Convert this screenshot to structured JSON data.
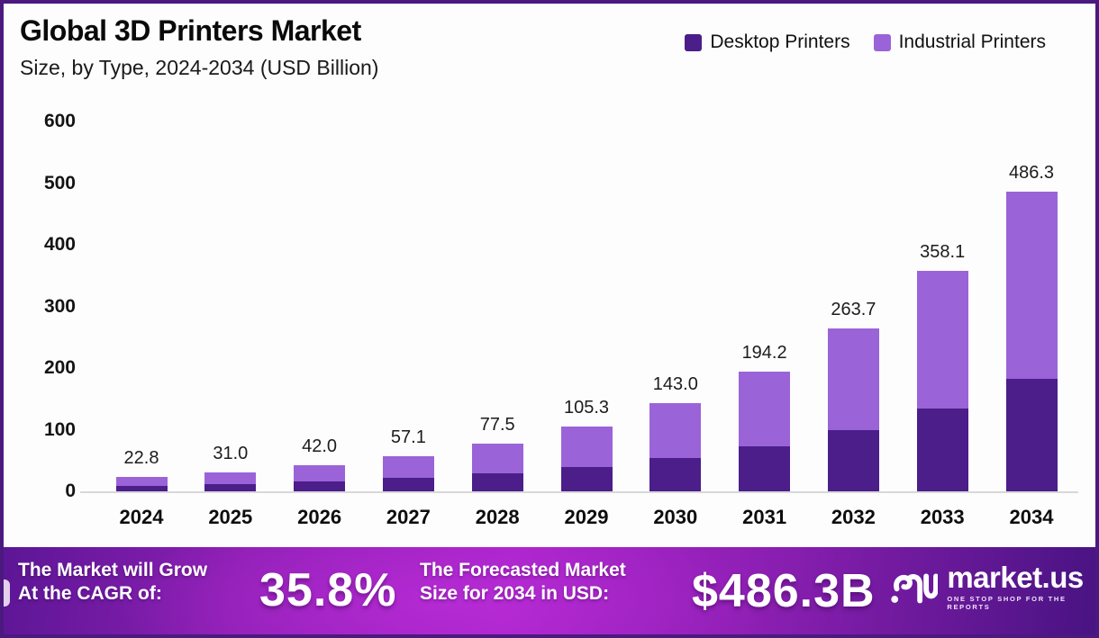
{
  "header": {
    "title": "Global 3D Printers Market",
    "subtitle": "Size, by Type, 2024-2034 (USD Billion)"
  },
  "legend": [
    {
      "label": "Desktop Printers",
      "color": "#4B1E8A"
    },
    {
      "label": "Industrial Printers",
      "color": "#9B63D8"
    }
  ],
  "colors": {
    "bar_desktop": "#4B1E8A",
    "bar_industrial": "#9B63D8",
    "page_border": "#4A1A7F",
    "axis_line": "#D8D8D8",
    "banner_gradient": [
      "#5C1695",
      "#A824C9",
      "#471381"
    ]
  },
  "chart_data": {
    "type": "bar",
    "stacked": true,
    "title": "Global 3D Printers Market Size, by Type, 2024-2034 (USD Billion)",
    "categories": [
      "2024",
      "2025",
      "2026",
      "2027",
      "2028",
      "2029",
      "2030",
      "2031",
      "2032",
      "2033",
      "2034"
    ],
    "series": [
      {
        "name": "Desktop Printers",
        "color": "#4B1E8A",
        "estimated_from_pixels": true,
        "values": [
          8.6,
          11.6,
          15.8,
          21.4,
          29.1,
          39.5,
          53.6,
          72.8,
          98.9,
          134.3,
          182.4
        ]
      },
      {
        "name": "Industrial Printers",
        "color": "#9B63D8",
        "estimated_from_pixels": true,
        "values": [
          14.2,
          19.4,
          26.2,
          35.7,
          48.4,
          65.8,
          89.4,
          121.4,
          164.8,
          223.8,
          303.9
        ]
      }
    ],
    "totals": [
      22.8,
      31.0,
      42.0,
      57.1,
      77.5,
      105.3,
      143.0,
      194.2,
      263.7,
      358.1,
      486.3
    ],
    "total_labels": [
      "22.8",
      "31.0",
      "42.0",
      "57.1",
      "77.5",
      "105.3",
      "143.0",
      "194.2",
      "263.7",
      "358.1",
      "486.3"
    ],
    "ylabel": "",
    "xlabel": "",
    "ylim": [
      0,
      600
    ],
    "yticks": [
      0,
      100,
      200,
      300,
      400,
      500,
      600
    ],
    "grid": false,
    "legend_position": "top-right"
  },
  "footer": {
    "cagr_label_line1": "The Market will Grow",
    "cagr_label_line2": "At the CAGR of:",
    "cagr_value": "35.8%",
    "forecast_label_line1": "The Forecasted Market",
    "forecast_label_line2": "Size for 2034 in USD:",
    "forecast_value": "$486.3B",
    "brand_name": "market.us",
    "brand_tagline": "ONE STOP SHOP FOR THE REPORTS"
  }
}
